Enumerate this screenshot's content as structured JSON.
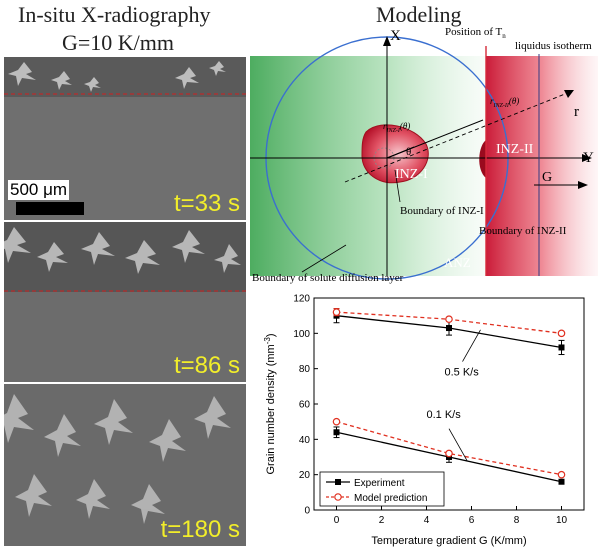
{
  "left_title": "In-situ X-radiography",
  "gradient_label": "G=10 K/mm",
  "scale_bar_label": "500 μm",
  "frames": [
    {
      "time": "t=33 s"
    },
    {
      "time": "t=86 s"
    },
    {
      "time": "t=180 s"
    }
  ],
  "model_title": "Modeling",
  "diagram": {
    "axis_x": "X",
    "axis_y": "Y",
    "axis_r": "r",
    "angle": "θ",
    "position_tn": "Position of T",
    "position_tn_sub": "n",
    "liquidus": "liquidus isotherm",
    "inz1": "INZ-I",
    "inz2": "INZ-II",
    "anz": "ANZ",
    "g_label": "G",
    "r_inz1": "r",
    "r_inz1_sub": "INZ-I",
    "r_inz1_arg": "(θ)",
    "r_inz2": "r",
    "r_inz2_sub": "INZ-II",
    "r_inz2_arg": "(θ)",
    "boundary_inz1": "Boundary of INZ-I",
    "boundary_inz2": "Boundary of INZ-II",
    "boundary_solute": "Boundary of  solute diffusion layer",
    "colors": {
      "green": "#3fae4f",
      "red": "#d42a3a",
      "blue": "#3a6fd0"
    }
  },
  "chart_data": {
    "type": "line",
    "xlabel": "Temperature gradient G (K/mm)",
    "ylabel": "Grain number density (mm",
    "ylabel_sup": "-3",
    "ylabel_end": ")",
    "xlim": [
      -1,
      11
    ],
    "ylim": [
      0,
      120
    ],
    "xticks": [
      0,
      2,
      4,
      6,
      8,
      10
    ],
    "yticks": [
      0,
      20,
      40,
      60,
      80,
      100,
      120
    ],
    "series": [
      {
        "name": "Experiment",
        "group": "0.5 K/s",
        "x": [
          0,
          5,
          10
        ],
        "y": [
          110,
          103,
          92
        ],
        "err": [
          4,
          4,
          4
        ],
        "style": "solid",
        "marker": "square",
        "color": "#000000"
      },
      {
        "name": "Model prediction",
        "group": "0.5 K/s",
        "x": [
          0,
          5,
          10
        ],
        "y": [
          112,
          108,
          100
        ],
        "err": [
          2,
          0,
          0
        ],
        "style": "dashed",
        "marker": "circle-open",
        "color": "#e03020"
      },
      {
        "name": "Experiment",
        "group": "0.1 K/s",
        "x": [
          0,
          5,
          10
        ],
        "y": [
          44,
          30,
          16
        ],
        "err": [
          3,
          3,
          1
        ],
        "style": "solid",
        "marker": "square",
        "color": "#000000"
      },
      {
        "name": "Model prediction",
        "group": "0.1 K/s",
        "x": [
          0,
          5,
          10
        ],
        "y": [
          50,
          32,
          20
        ],
        "err": [
          0,
          0,
          0
        ],
        "style": "dashed",
        "marker": "circle-open",
        "color": "#e03020"
      }
    ],
    "annotations": [
      "0.5 K/s",
      "0.1 K/s"
    ],
    "legend": [
      "Experiment",
      "Model prediction"
    ],
    "legend_position": "bottom-left"
  }
}
